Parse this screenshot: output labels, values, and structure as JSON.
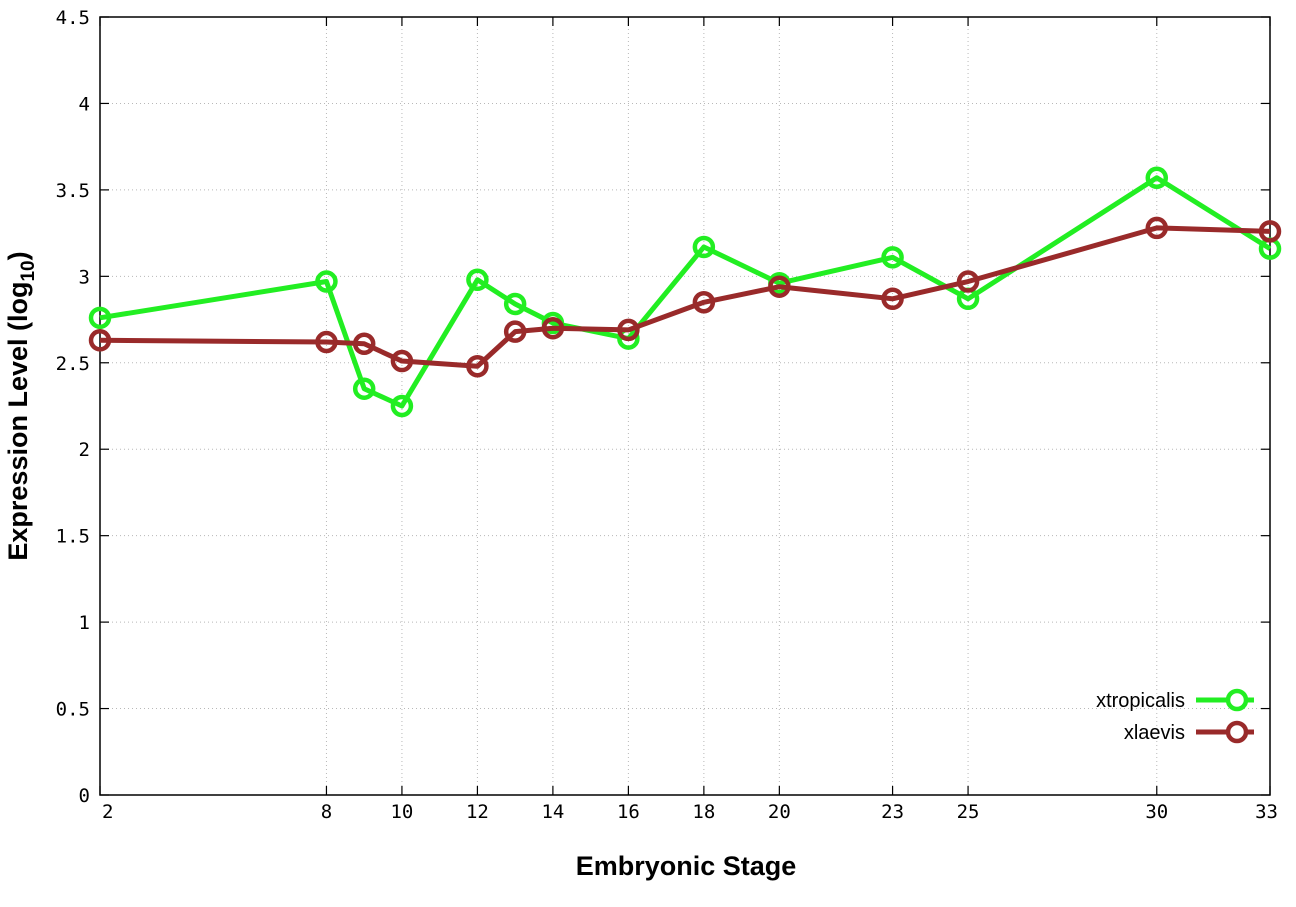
{
  "chart_data": {
    "type": "line",
    "xlabel": "Embryonic Stage",
    "ylabel_main": "Expression Level (log",
    "ylabel_sub": "10",
    "ylabel_close": ")",
    "xlim": [
      2,
      33
    ],
    "ylim": [
      0,
      4.5
    ],
    "x_ticks": [
      2,
      8,
      10,
      12,
      14,
      16,
      18,
      20,
      23,
      25,
      30,
      33
    ],
    "y_ticks": [
      0,
      0.5,
      1,
      1.5,
      2,
      2.5,
      3,
      3.5,
      4,
      4.5
    ],
    "y_tick_labels": [
      "0",
      "0.5",
      "1",
      "1.5",
      "2",
      "2.5",
      "3",
      "3.5",
      "4",
      "4.5"
    ],
    "grid": true,
    "legend_position": "bottom-right",
    "x": [
      2,
      8,
      9,
      10,
      12,
      13,
      14,
      16,
      18,
      20,
      23,
      25,
      30,
      33
    ],
    "series": [
      {
        "name": "xtropicalis",
        "color": "#22ee22",
        "values": [
          2.76,
          2.97,
          2.35,
          2.25,
          2.98,
          2.84,
          2.73,
          2.64,
          3.17,
          2.96,
          3.11,
          2.87,
          3.57,
          3.16
        ]
      },
      {
        "name": "xlaevis",
        "color": "#992a2a",
        "values": [
          2.63,
          2.62,
          2.61,
          2.51,
          2.48,
          2.68,
          2.7,
          2.69,
          2.85,
          2.94,
          2.87,
          2.97,
          3.28,
          3.26
        ]
      }
    ]
  }
}
